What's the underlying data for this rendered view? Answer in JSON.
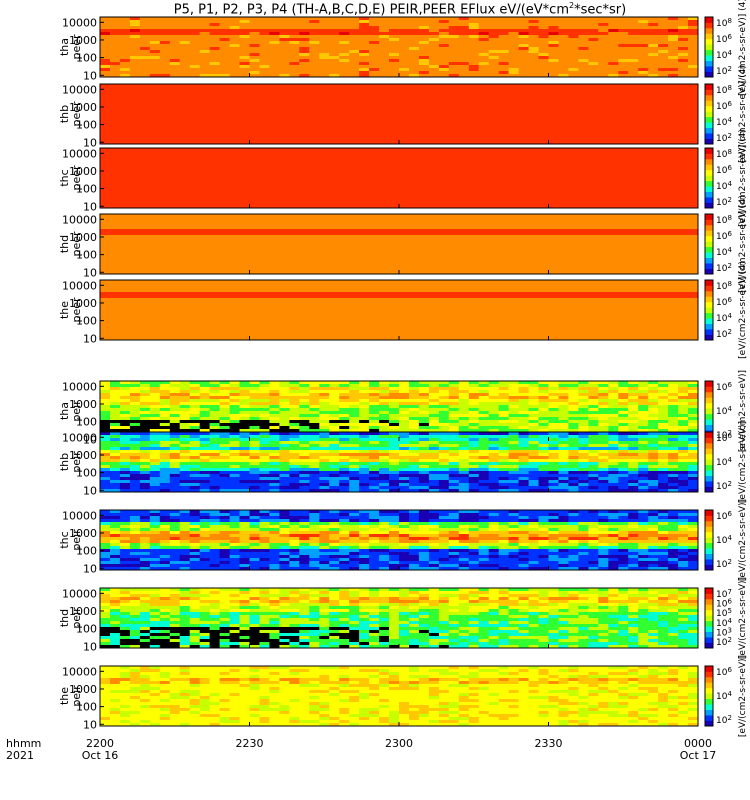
{
  "title": "P5, P1, P2, P3, P4 (TH-A,B,C,D,E) PEIR,PEER EFlux eV/(eV*cm",
  "title_sup": "2",
  "title_tail": "*sec*sr)",
  "footer": {
    "line1": "hhmm",
    "line2": "2021"
  },
  "colors": {
    "colormap": [
      "#000000",
      "#1a00b4",
      "#0032ff",
      "#00a0ff",
      "#00ffd2",
      "#32ff32",
      "#c8ff00",
      "#ffff00",
      "#ffc800",
      "#ff8c00",
      "#ff3200",
      "#e60000"
    ]
  },
  "chart_data": {
    "type": "heatmap",
    "x_axis": {
      "ticks": [
        {
          "line1": "2200",
          "line2": "Oct 16"
        },
        {
          "line1": "2230",
          "line2": ""
        },
        {
          "line1": "2300",
          "line2": ""
        },
        {
          "line1": "2330",
          "line2": ""
        },
        {
          "line1": "0000",
          "line2": "Oct 17"
        }
      ]
    },
    "y_axis": {
      "scale": "log",
      "range": [
        8,
        20000
      ],
      "ticks": [
        "10000",
        "1000",
        "100",
        "10"
      ]
    },
    "panels": [
      {
        "label1": "tha",
        "label2": "peer",
        "cb": [
          "10",
          "10",
          "10",
          "10"
        ],
        "cb_exp": [
          "8",
          "6",
          "4",
          "2"
        ],
        "side": "[eV/(cm2-s-sr-eV)] (4)",
        "base": 9,
        "noise": 0.6,
        "black_low": 0,
        "bands": [
          [
            3000,
            10,
            1
          ],
          [
            50,
            9,
            2
          ]
        ]
      },
      {
        "label1": "thb",
        "label2": "peer",
        "cb": [
          "10",
          "10",
          "10",
          "10"
        ],
        "cb_exp": [
          "8",
          "6",
          "4",
          "2"
        ],
        "side": "[eV/(cm2-s-sr-eV)] (4)",
        "base": 10,
        "noise": 0.4,
        "black_low": 0,
        "bands": [
          [
            5000,
            4,
            2
          ],
          [
            1000,
            7,
            1
          ],
          [
            300,
            9,
            1
          ]
        ]
      },
      {
        "label1": "thc",
        "label2": "peer",
        "cb": [
          "10",
          "10",
          "10",
          "10"
        ],
        "cb_exp": [
          "8",
          "6",
          "4",
          "2"
        ],
        "side": "[eV/(cm2-s-sr-eV)] (4)",
        "base": 10,
        "noise": 0.5,
        "black_low": 0,
        "bands": [
          [
            5000,
            2,
            2
          ],
          [
            1000,
            6,
            1
          ],
          [
            300,
            9,
            1
          ]
        ]
      },
      {
        "label1": "thd",
        "label2": "peer",
        "cb": [
          "10",
          "10",
          "10",
          "10"
        ],
        "cb_exp": [
          "8",
          "6",
          "4",
          "2"
        ],
        "side": "[eV/(cm2-s-sr-eV)] (4)",
        "base": 9,
        "noise": 0.4,
        "black_low": 0,
        "bands": [
          [
            2000,
            10,
            1
          ]
        ]
      },
      {
        "label1": "the",
        "label2": "peer",
        "cb": [
          "10",
          "10",
          "10",
          "10"
        ],
        "cb_exp": [
          "8",
          "6",
          "4",
          "2"
        ],
        "side": "[eV/(cm2-s-sr-eV)] (4)",
        "base": 9,
        "noise": 0.4,
        "black_low": 0,
        "bands": [
          [
            3000,
            10,
            1
          ]
        ]
      },
      {
        "label1": "tha",
        "label2": "peir",
        "cb": [
          "10",
          "10",
          "10"
        ],
        "cb_exp": [
          "6",
          "4",
          "2"
        ],
        "side": "[eV/(cm2-s-sr-eV)]",
        "base": 6,
        "noise": 1.2,
        "black_low": 1,
        "bands": [
          [
            3000,
            8,
            2
          ]
        ]
      },
      {
        "label1": "thb",
        "label2": "peir",
        "cb": [
          "10",
          "10",
          "10"
        ],
        "cb_exp": [
          "6",
          "4",
          "2"
        ],
        "side": "[eV/(cm2-s-sr-eV)]",
        "base": 2,
        "noise": 1.0,
        "black_low": 0,
        "bands": [
          [
            5000,
            5,
            1
          ],
          [
            1000,
            8,
            1
          ],
          [
            300,
            5,
            1
          ]
        ]
      },
      {
        "label1": "thc",
        "label2": "peir",
        "cb": [
          "10",
          "10",
          "10"
        ],
        "cb_exp": [
          "6",
          "4",
          "2"
        ],
        "side": "[eV/(cm2-s-sr-eV)]",
        "base": 2,
        "noise": 1.0,
        "black_low": 0,
        "bands": [
          [
            2000,
            6,
            1
          ],
          [
            700,
            9,
            1
          ],
          [
            300,
            6,
            1
          ]
        ]
      },
      {
        "label1": "thd",
        "label2": "peir",
        "cb": [
          "10",
          "10",
          "10",
          "10",
          "10",
          "10"
        ],
        "cb_exp": [
          "7",
          "6",
          "5",
          "4",
          "3",
          "2"
        ],
        "side": "[eV/(cm2-s-sr-eV)]",
        "base": 5,
        "noise": 1.2,
        "black_low": 1,
        "bands": [
          [
            5000,
            8,
            2
          ]
        ]
      },
      {
        "label1": "the",
        "label2": "peir",
        "cb": [
          "10",
          "10",
          "10"
        ],
        "cb_exp": [
          "6",
          "4",
          "2"
        ],
        "side": "[eV/(cm2-s-sr-eV)]",
        "base": 7,
        "noise": 0.8,
        "black_low": 0,
        "bands": [
          [
            3000,
            8,
            2
          ]
        ]
      }
    ]
  }
}
